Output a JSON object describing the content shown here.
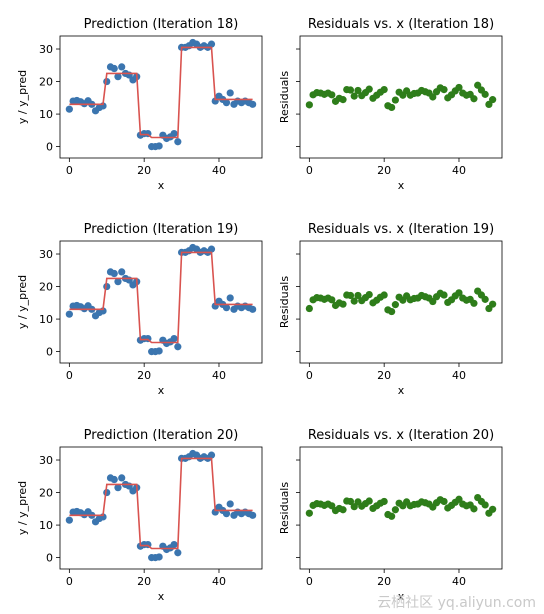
{
  "colors": {
    "data_points": "#3b75af",
    "prediction_line": "#d9534f",
    "residual_points": "#2e7d1a"
  },
  "watermark": "云栖社区 yq.aliyun.com",
  "chart_data": [
    {
      "type": "scatter",
      "title": "Prediction (Iteration 18)",
      "xlabel": "x",
      "ylabel": "y / y_pred",
      "xlim": [
        -2.5,
        51.5
      ],
      "ylim": [
        -3.5,
        34
      ],
      "xticks": [
        0,
        20,
        40
      ],
      "yticks": [
        0,
        10,
        20,
        30
      ],
      "x": [
        0,
        1,
        2,
        3,
        4,
        5,
        6,
        7,
        8,
        9,
        10,
        11,
        12,
        13,
        14,
        15,
        16,
        17,
        18,
        19,
        20,
        21,
        22,
        23,
        24,
        25,
        26,
        27,
        28,
        29,
        30,
        31,
        32,
        33,
        34,
        35,
        36,
        37,
        38,
        39,
        40,
        41,
        42,
        43,
        44,
        45,
        46,
        47,
        48,
        49
      ],
      "y": [
        11.5,
        14,
        14.2,
        13.8,
        13.2,
        14.1,
        13,
        11,
        12,
        12.5,
        20,
        24.5,
        24,
        21.5,
        24.5,
        22.5,
        22,
        20.5,
        21.5,
        3.5,
        4,
        4,
        0,
        0,
        0.2,
        3.5,
        2.5,
        3,
        4,
        1.5,
        30.5,
        30.5,
        31,
        32,
        31.5,
        30.5,
        31,
        30.5,
        31.5,
        14,
        15.5,
        14.5,
        13.5,
        16.5,
        13,
        14,
        13.5,
        14,
        13.5,
        13
      ],
      "y_pred": [
        13,
        13,
        13,
        13,
        13,
        13,
        13,
        13,
        13,
        13,
        22.5,
        22.5,
        22.5,
        22.5,
        22.5,
        22.5,
        22.5,
        22.5,
        22.5,
        3.7,
        3.7,
        3.7,
        2.8,
        2.8,
        2.8,
        2.8,
        2.8,
        2.8,
        2.8,
        2.8,
        30.5,
        30.5,
        30.5,
        30.5,
        30.5,
        30.5,
        30.5,
        30.5,
        30.5,
        14.5,
        14.5,
        14.5,
        14.5,
        14.5,
        14.5,
        14.5,
        14.5,
        14.5,
        14.5,
        14.5
      ],
      "legend": "none",
      "grid": false
    },
    {
      "type": "scatter",
      "title": "Residuals vs. x (Iteration 18)",
      "xlabel": "x",
      "ylabel": "Residuals",
      "xlim": [
        -2.5,
        51.5
      ],
      "ylim": [
        -1.5,
        1.3
      ],
      "xticks": [
        0,
        20,
        40
      ],
      "x": [
        0,
        1,
        2,
        3,
        4,
        5,
        6,
        7,
        8,
        9,
        10,
        11,
        12,
        13,
        14,
        15,
        16,
        17,
        18,
        19,
        20,
        21,
        22,
        23,
        24,
        25,
        26,
        27,
        28,
        29,
        30,
        31,
        32,
        33,
        34,
        35,
        36,
        37,
        38,
        39,
        40,
        41,
        42,
        43,
        44,
        45,
        46,
        47,
        48,
        49
      ],
      "y": [
        -0.28,
        -0.05,
        0.0,
        -0.01,
        -0.04,
        -0.01,
        -0.05,
        -0.2,
        -0.13,
        -0.16,
        0.07,
        0.06,
        -0.08,
        0.05,
        -0.07,
        0.0,
        0.08,
        -0.13,
        -0.06,
        0.01,
        0.07,
        -0.3,
        -0.34,
        -0.17,
        0.01,
        -0.06,
        0.04,
        -0.06,
        -0.02,
        -0.01,
        0.05,
        0.02,
        -0.01,
        -0.1,
        0.02,
        0.11,
        0.07,
        -0.12,
        -0.05,
        0.04,
        0.12,
        -0.01,
        -0.06,
        -0.04,
        -0.14,
        0.17,
        0.06,
        -0.04,
        -0.27,
        -0.16
      ],
      "legend": "none",
      "grid": false
    },
    {
      "type": "scatter",
      "title": "Prediction (Iteration 19)",
      "xlabel": "x",
      "ylabel": "y / y_pred",
      "xlim": [
        -2.5,
        51.5
      ],
      "ylim": [
        -3.5,
        34
      ],
      "xticks": [
        0,
        20,
        40
      ],
      "yticks": [
        0,
        10,
        20,
        30
      ],
      "x": [
        0,
        1,
        2,
        3,
        4,
        5,
        6,
        7,
        8,
        9,
        10,
        11,
        12,
        13,
        14,
        15,
        16,
        17,
        18,
        19,
        20,
        21,
        22,
        23,
        24,
        25,
        26,
        27,
        28,
        29,
        30,
        31,
        32,
        33,
        34,
        35,
        36,
        37,
        38,
        39,
        40,
        41,
        42,
        43,
        44,
        45,
        46,
        47,
        48,
        49
      ],
      "y": [
        11.5,
        14,
        14.2,
        13.8,
        13.2,
        14.1,
        13,
        11,
        12,
        12.5,
        20,
        24.5,
        24,
        21.5,
        24.5,
        22.5,
        22,
        20.5,
        21.5,
        3.5,
        4,
        4,
        0,
        0,
        0.2,
        3.5,
        2.5,
        3,
        4,
        1.5,
        30.5,
        30.5,
        31,
        32,
        31.5,
        30.5,
        31,
        30.5,
        31.5,
        14,
        15.5,
        14.5,
        13.5,
        16.5,
        13,
        14,
        13.5,
        14,
        13.5,
        13
      ],
      "y_pred": [
        13,
        13,
        13,
        13,
        13,
        13,
        13,
        13,
        13,
        13,
        22.5,
        22.5,
        22.5,
        22.5,
        22.5,
        22.5,
        22.5,
        22.5,
        22.5,
        3.7,
        3.7,
        3.7,
        2.8,
        2.8,
        2.8,
        2.8,
        2.8,
        2.8,
        2.8,
        2.8,
        30.5,
        30.5,
        30.5,
        30.5,
        30.5,
        30.5,
        30.5,
        30.5,
        30.5,
        14.5,
        14.5,
        14.5,
        14.5,
        14.5,
        14.5,
        14.5,
        14.5,
        14.5,
        14.5,
        14.5
      ],
      "legend": "none",
      "grid": false
    },
    {
      "type": "scatter",
      "title": "Residuals vs. x (Iteration 19)",
      "xlabel": "x",
      "ylabel": "Residuals",
      "xlim": [
        -2.5,
        51.5
      ],
      "ylim": [
        -1.5,
        1.3
      ],
      "xticks": [
        0,
        20,
        40
      ],
      "x": [
        0,
        1,
        2,
        3,
        4,
        5,
        6,
        7,
        8,
        9,
        10,
        11,
        12,
        13,
        14,
        15,
        16,
        17,
        18,
        19,
        20,
        21,
        22,
        23,
        24,
        25,
        26,
        27,
        28,
        29,
        30,
        31,
        32,
        33,
        34,
        35,
        36,
        37,
        38,
        39,
        40,
        41,
        42,
        43,
        44,
        45,
        46,
        47,
        48,
        49
      ],
      "y": [
        -0.25,
        -0.05,
        0.0,
        -0.01,
        -0.04,
        -0.01,
        -0.05,
        -0.18,
        -0.12,
        -0.15,
        0.06,
        0.05,
        -0.08,
        0.05,
        -0.07,
        0.0,
        0.07,
        -0.12,
        -0.06,
        0.01,
        0.06,
        -0.28,
        -0.32,
        -0.16,
        0.01,
        -0.06,
        0.04,
        -0.05,
        -0.02,
        -0.01,
        0.05,
        0.02,
        -0.01,
        -0.09,
        0.02,
        0.1,
        0.06,
        -0.11,
        -0.05,
        0.04,
        0.11,
        -0.01,
        -0.06,
        -0.04,
        -0.13,
        0.15,
        0.06,
        -0.04,
        -0.25,
        -0.15
      ],
      "legend": "none",
      "grid": false
    },
    {
      "type": "scatter",
      "title": "Prediction (Iteration 20)",
      "xlabel": "x",
      "ylabel": "y / y_pred",
      "xlim": [
        -2.5,
        51.5
      ],
      "ylim": [
        -3.5,
        34
      ],
      "xticks": [
        0,
        20,
        40
      ],
      "yticks": [
        0,
        10,
        20,
        30
      ],
      "x": [
        0,
        1,
        2,
        3,
        4,
        5,
        6,
        7,
        8,
        9,
        10,
        11,
        12,
        13,
        14,
        15,
        16,
        17,
        18,
        19,
        20,
        21,
        22,
        23,
        24,
        25,
        26,
        27,
        28,
        29,
        30,
        31,
        32,
        33,
        34,
        35,
        36,
        37,
        38,
        39,
        40,
        41,
        42,
        43,
        44,
        45,
        46,
        47,
        48,
        49
      ],
      "y": [
        11.5,
        14,
        14.2,
        13.8,
        13.2,
        14.1,
        13,
        11,
        12,
        12.5,
        20,
        24.5,
        24,
        21.5,
        24.5,
        22.5,
        22,
        20.5,
        21.5,
        3.5,
        4,
        4,
        0,
        0,
        0.2,
        3.5,
        2.5,
        3,
        4,
        1.5,
        30.5,
        30.5,
        31,
        32,
        31.5,
        30.5,
        31,
        30.5,
        31.5,
        14,
        15.5,
        14.5,
        13.5,
        16.5,
        13,
        14,
        13.5,
        14,
        13.5,
        13
      ],
      "y_pred": [
        13,
        13,
        13,
        13,
        13,
        13,
        13,
        13,
        13,
        13,
        22.5,
        22.5,
        22.5,
        22.5,
        22.5,
        22.5,
        22.5,
        22.5,
        22.5,
        3.7,
        3.7,
        3.7,
        2.8,
        2.8,
        2.8,
        2.8,
        2.8,
        2.8,
        2.8,
        2.8,
        30.5,
        30.5,
        30.5,
        30.5,
        30.5,
        30.5,
        30.5,
        30.5,
        30.5,
        14.5,
        14.5,
        14.5,
        14.5,
        14.5,
        14.5,
        14.5,
        14.5,
        14.5,
        14.5,
        14.5
      ],
      "legend": "none",
      "grid": false
    },
    {
      "type": "scatter",
      "title": "Residuals vs. x (Iteration 20)",
      "xlabel": "x",
      "ylabel": "Residuals",
      "xlim": [
        -2.5,
        51.5
      ],
      "ylim": [
        -1.5,
        1.3
      ],
      "xticks": [
        0,
        20,
        40
      ],
      "x": [
        0,
        1,
        2,
        3,
        4,
        5,
        6,
        7,
        8,
        9,
        10,
        11,
        12,
        13,
        14,
        15,
        16,
        17,
        18,
        19,
        20,
        21,
        22,
        23,
        24,
        25,
        26,
        27,
        28,
        29,
        30,
        31,
        32,
        33,
        34,
        35,
        36,
        37,
        38,
        39,
        40,
        41,
        42,
        43,
        44,
        45,
        46,
        47,
        48,
        49
      ],
      "y": [
        -0.22,
        -0.04,
        0.0,
        -0.01,
        -0.04,
        -0.01,
        -0.05,
        -0.16,
        -0.11,
        -0.14,
        0.06,
        0.05,
        -0.07,
        0.04,
        -0.06,
        0.0,
        0.06,
        -0.11,
        -0.05,
        0.01,
        0.05,
        -0.25,
        -0.29,
        -0.14,
        0.01,
        -0.05,
        0.04,
        -0.05,
        -0.02,
        -0.01,
        0.04,
        0.02,
        -0.01,
        -0.08,
        0.02,
        0.09,
        0.05,
        -0.1,
        -0.04,
        0.03,
        0.1,
        -0.01,
        -0.05,
        -0.03,
        -0.12,
        0.14,
        0.05,
        -0.03,
        -0.22,
        -0.13
      ],
      "legend": "none",
      "grid": false
    }
  ]
}
